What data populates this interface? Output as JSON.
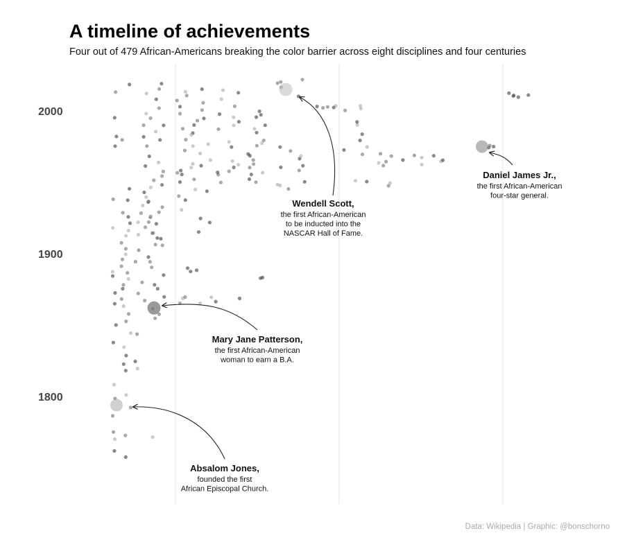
{
  "title": "A timeline of achievements",
  "subtitle": "Four out of 479 African-Americans breaking the color barrier across eight disciplines and four centuries",
  "caption": "Data: Wikipedia | Graphic: @bonschorno",
  "chart_data": {
    "type": "scatter",
    "y_ticks": [
      "1800",
      "1900",
      "2000"
    ],
    "ylim": [
      1745,
      2030
    ],
    "grid": "vertical separators between disciplines",
    "point_color": "#555555",
    "highlight_color": "#888888",
    "highlights": [
      {
        "name": "Absalom Jones,",
        "lines": [
          "founded the first",
          "African Episcopal Church."
        ],
        "year": 1794
      },
      {
        "name": "Mary Jane Patterson,",
        "lines": [
          "the first African-American",
          "woman to earn a B.A."
        ],
        "year": 1862
      },
      {
        "name": "Wendell Scott,",
        "lines": [
          "the first African-American",
          "to be inducted into the",
          "NASCAR Hall of Fame."
        ],
        "year": 2015
      },
      {
        "name": "Daniel James Jr.,",
        "lines": [
          "the first African-American",
          "four-star general."
        ],
        "year": 1975
      }
    ],
    "clusters": [
      {
        "x": 165,
        "w": 6,
        "ys": [
          1762,
          1775,
          1787,
          1808,
          1798,
          1838,
          1865,
          1888,
          1918,
          1938,
          1975,
          1982,
          1995,
          2013,
          1885,
          1850,
          1770,
          1872
        ]
      },
      {
        "x": 182,
        "w": 14,
        "ys": [
          1757,
          1773,
          1792,
          1801,
          1818,
          1823,
          1835,
          1845,
          1858,
          1868,
          1878,
          1882,
          1891,
          1899,
          1904,
          1912,
          1921,
          1929,
          1938,
          1945,
          1979,
          2019,
          1828,
          1852,
          1863,
          1875,
          1886,
          1896,
          1908,
          1916,
          1926
        ]
      },
      {
        "x": 200,
        "w": 12,
        "ys": [
          1819,
          1824,
          1843,
          1872,
          1880,
          1895,
          1903,
          1914,
          1922,
          1929,
          1934
        ]
      },
      {
        "x": 222,
        "w": 30,
        "ys": [
          1771,
          1855,
          1858,
          1862,
          1867,
          1870,
          1875,
          1878,
          1885,
          1890,
          1898,
          1906,
          1910,
          1915,
          1918,
          1922,
          1925,
          1929,
          1932,
          1936,
          1940,
          1943,
          1946,
          1951,
          1955,
          1958,
          1961,
          1964,
          1968,
          1976,
          1980,
          1985,
          1990,
          1995,
          1998,
          2002,
          2008,
          2012,
          2016,
          2019,
          1948,
          1936,
          1927,
          1921,
          1914,
          1894,
          1906,
          1911,
          1990,
          1982
        ]
      },
      {
        "x": 280,
        "w": 50,
        "ys": [
          1865,
          1866,
          1868,
          1870,
          1889,
          1890,
          1915,
          1922,
          1925,
          1937,
          1940,
          1945,
          1950,
          1955,
          1958,
          1960,
          1963,
          1970,
          1975,
          1980,
          1985,
          1990,
          1995,
          2000,
          2005,
          2010,
          2015,
          1952,
          1957,
          1962,
          1966,
          1972,
          1977,
          1983,
          1988,
          1993,
          1998,
          2003,
          2008,
          2013,
          1870,
          1888,
          1930,
          1944
        ]
      },
      {
        "x": 328,
        "w": 35,
        "ys": [
          1866,
          1868,
          1950,
          1955,
          1957,
          1958,
          1962,
          1975,
          1987,
          1990,
          1993,
          1998,
          2003,
          2008,
          2012,
          2015,
          1960,
          1965,
          1978,
          1996
        ]
      },
      {
        "x": 370,
        "w": 30,
        "ys": [
          1883,
          1884,
          1950,
          1952,
          1955,
          1960,
          1965,
          1968,
          1970,
          1975,
          1980,
          1985,
          1990,
          1995,
          2000,
          1957,
          1963,
          1978,
          1988,
          1998
        ]
      },
      {
        "x": 420,
        "w": 40,
        "ys": [
          1948,
          1950,
          1958,
          1961,
          1966,
          1969,
          1972,
          1975,
          2017,
          2019,
          2020,
          2022,
          2010,
          1960,
          1945,
          1948
        ]
      },
      {
        "x": 470,
        "w": 30,
        "ys": [
          2002,
          2002,
          2003,
          2003,
          2003
        ]
      },
      {
        "x": 512,
        "w": 40,
        "ys": [
          1950,
          1951,
          1970,
          1973,
          1975,
          1980,
          1983,
          1990,
          1992,
          2000,
          2002,
          2003
        ]
      },
      {
        "x": 560,
        "w": 35,
        "ys": [
          1948,
          1949,
          1962,
          1964,
          1965,
          1968,
          1970
        ]
      },
      {
        "x": 610,
        "w": 60,
        "ys": [
          1963,
          1964,
          1965,
          1966,
          1967,
          1968,
          1969
        ]
      },
      {
        "x": 705,
        "w": 25,
        "ys": [
          1974,
          1975,
          1976
        ]
      },
      {
        "x": 748,
        "w": 30,
        "ys": [
          2010,
          2011,
          2012,
          2011,
          2010
        ]
      }
    ],
    "separators": [
      253,
      489,
      725
    ]
  }
}
